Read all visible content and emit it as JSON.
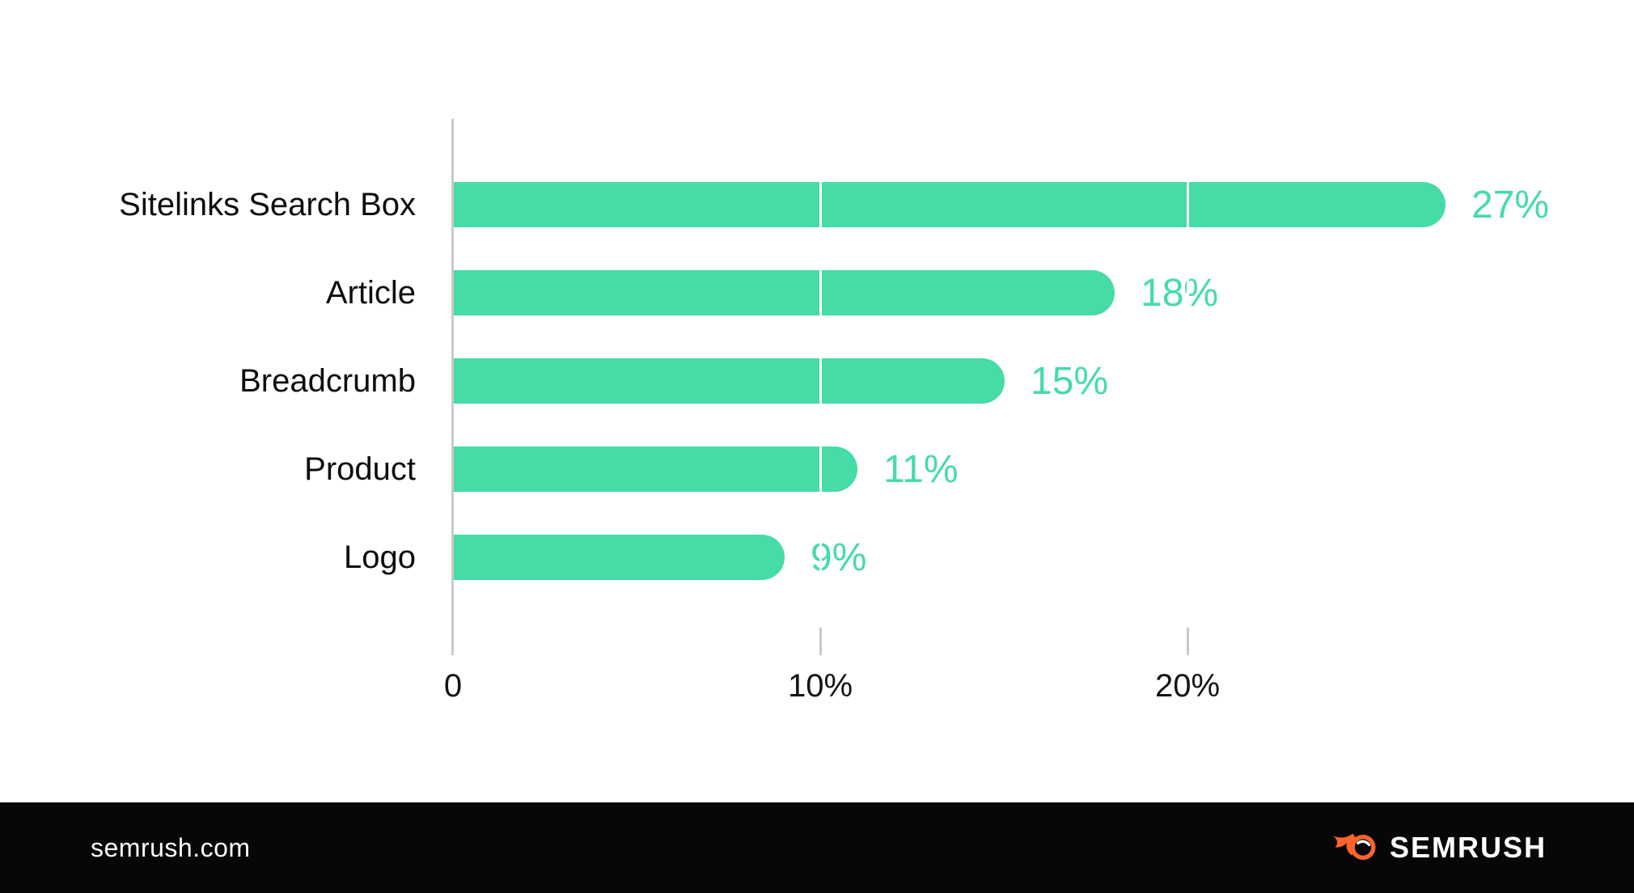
{
  "chart_data": {
    "type": "bar",
    "orientation": "horizontal",
    "title": "",
    "xlabel": "",
    "ylabel": "",
    "categories": [
      "Sitelinks Search Box",
      "Article",
      "Breadcrumb",
      "Product",
      "Logo"
    ],
    "values": [
      27,
      18,
      15,
      11,
      9
    ],
    "value_labels": [
      "27%",
      "18%",
      "15%",
      "11%",
      "9%"
    ],
    "x_ticks": [
      {
        "value": 0,
        "label": "0"
      },
      {
        "value": 10,
        "label": "10%"
      },
      {
        "value": 20,
        "label": "20%"
      }
    ],
    "xlim": [
      0,
      30
    ],
    "grid": "vertical gridlines at 10% steps shown as white lines across bars, gray ticks below axis",
    "legend": "none",
    "colors": {
      "bar": "#45dca5",
      "value_label": "#45dca5",
      "axis": "#c9c9c9",
      "tick_label": "#141414",
      "category_label": "#0d0d0d",
      "background": "#ffffff"
    }
  },
  "footer": {
    "website": "semrush.com",
    "brand": "SEMRUSH",
    "colors": {
      "background": "#070707",
      "text": "#ffffff",
      "logo_flame": "#ff642d"
    }
  }
}
